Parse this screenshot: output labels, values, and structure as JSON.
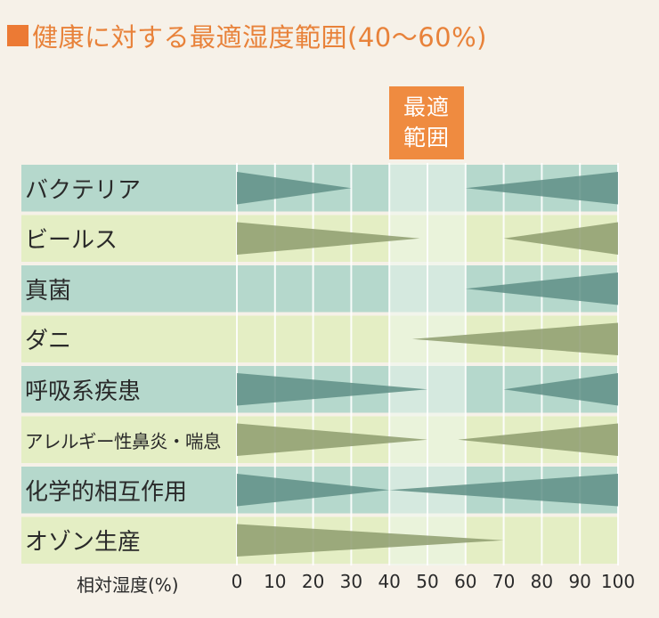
{
  "title": "健康に対する最適湿度範囲(40〜60%)",
  "optimal_label_line1": "最適",
  "optimal_label_line2": "範囲",
  "colors": {
    "accent": "#ef8b40",
    "row_teal": "#b5d8cc",
    "row_yellow": "#e4eec4",
    "wedge_teal_row": "#5f8f86",
    "wedge_yellow_row": "#8e9c6e",
    "optimal_band": "#eef7ee"
  },
  "chart_data": {
    "type": "bar",
    "title": "健康に対する最適湿度範囲(40〜60%)",
    "xlabel": "相対湿度(%)",
    "xlim": [
      0,
      100
    ],
    "xticks": [
      "0",
      "10",
      "20",
      "30",
      "40",
      "50",
      "60",
      "70",
      "80",
      "90",
      "100"
    ],
    "optimal_range": [
      40,
      60
    ],
    "categories": [
      {
        "name": "バクテリア",
        "low": [
          0,
          30
        ],
        "high": [
          60,
          100
        ]
      },
      {
        "name": "ビールス",
        "low": [
          0,
          48
        ],
        "high": [
          70,
          100
        ]
      },
      {
        "name": "真菌",
        "low": null,
        "high": [
          60,
          100
        ]
      },
      {
        "name": "ダニ",
        "low": null,
        "high": [
          46,
          100
        ]
      },
      {
        "name": "呼吸系疾患",
        "low": [
          0,
          50
        ],
        "high": [
          70,
          100
        ]
      },
      {
        "name": "アレルギー性鼻炎・喘息",
        "low": [
          0,
          50
        ],
        "high": [
          58,
          100
        ]
      },
      {
        "name": "化学的相互作用",
        "low": [
          0,
          40
        ],
        "high": [
          40,
          100
        ]
      },
      {
        "name": "オゾン生産",
        "low": [
          0,
          70
        ],
        "high": null
      }
    ]
  }
}
